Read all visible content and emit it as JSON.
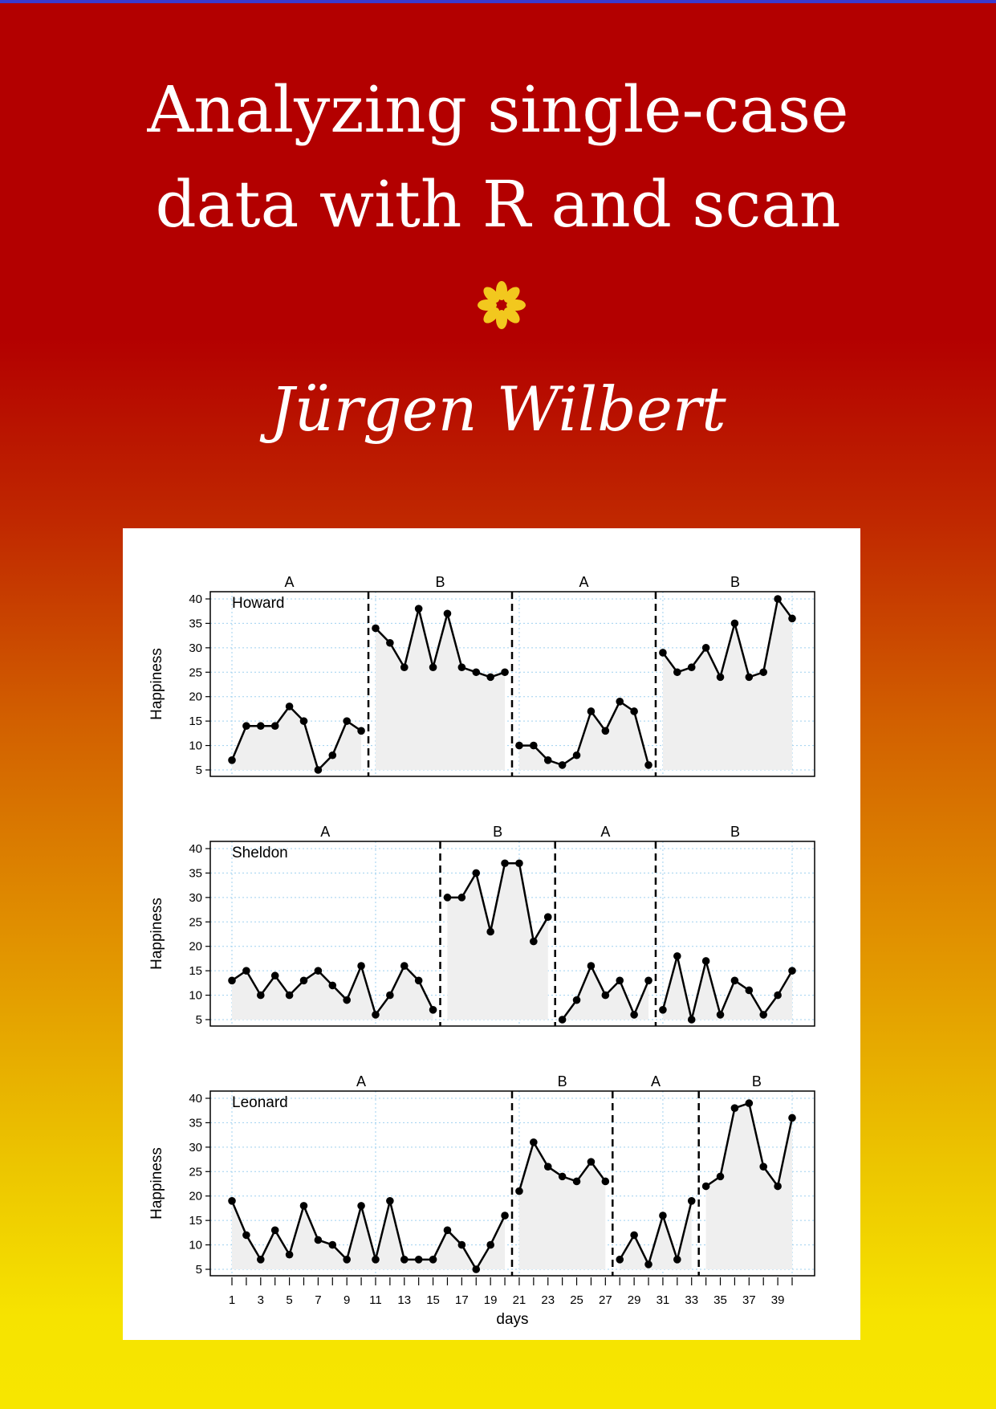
{
  "book": {
    "title_line1": "Analyzing single-case",
    "title_line2": "data with R and scan",
    "ornament_icon": "asterisk-flower-icon",
    "author": "Jürgen Wilbert"
  },
  "colors": {
    "background_top": "#b30000",
    "background_bottom": "#f7e600",
    "ornament": "#f2c81e",
    "text": "#ffffff"
  },
  "chart_data": {
    "type": "line",
    "ylabel": "Happiness",
    "xlabel": "days",
    "ylim": [
      5,
      40
    ],
    "yticks": [
      5,
      10,
      15,
      20,
      25,
      30,
      35,
      40
    ],
    "xlim": [
      1,
      40
    ],
    "xticks": [
      1,
      3,
      5,
      7,
      9,
      11,
      13,
      15,
      17,
      19,
      21,
      23,
      25,
      27,
      29,
      31,
      33,
      35,
      37,
      39
    ],
    "grid": true,
    "cases": [
      {
        "name": "Howard",
        "phases": [
          {
            "label": "A",
            "values": [
              7,
              14,
              14,
              14,
              18,
              15,
              5,
              8,
              15,
              13
            ]
          },
          {
            "label": "B",
            "values": [
              34,
              31,
              26,
              38,
              26,
              37,
              26,
              25,
              24,
              25
            ]
          },
          {
            "label": "A",
            "values": [
              10,
              10,
              7,
              6,
              8,
              17,
              13,
              19,
              17,
              6
            ]
          },
          {
            "label": "B",
            "values": [
              29,
              25,
              26,
              30,
              24,
              35,
              24,
              25,
              40,
              36
            ]
          }
        ]
      },
      {
        "name": "Sheldon",
        "phases": [
          {
            "label": "A",
            "values": [
              13,
              15,
              10,
              14,
              10,
              13,
              15,
              12,
              9,
              16,
              6,
              10,
              16,
              13,
              7
            ]
          },
          {
            "label": "B",
            "values": [
              30,
              30,
              35,
              23,
              37,
              37,
              21,
              26
            ]
          },
          {
            "label": "A",
            "values": [
              5,
              9,
              16,
              10,
              13,
              6,
              13
            ]
          },
          {
            "label": "B",
            "values": [
              7,
              18,
              5,
              17,
              6,
              13,
              11,
              6,
              10,
              15
            ]
          }
        ]
      },
      {
        "name": "Leonard",
        "phases": [
          {
            "label": "A",
            "values": [
              19,
              12,
              7,
              13,
              8,
              18,
              11,
              10,
              7,
              18,
              7,
              19,
              7,
              7,
              7,
              13,
              10,
              5,
              10,
              16
            ]
          },
          {
            "label": "B",
            "values": [
              21,
              31,
              26,
              24,
              23,
              27,
              23
            ]
          },
          {
            "label": "A",
            "values": [
              7,
              12,
              6,
              16,
              7,
              19
            ]
          },
          {
            "label": "B",
            "values": [
              22,
              24,
              38,
              39,
              26,
              22,
              36
            ]
          }
        ]
      }
    ]
  }
}
